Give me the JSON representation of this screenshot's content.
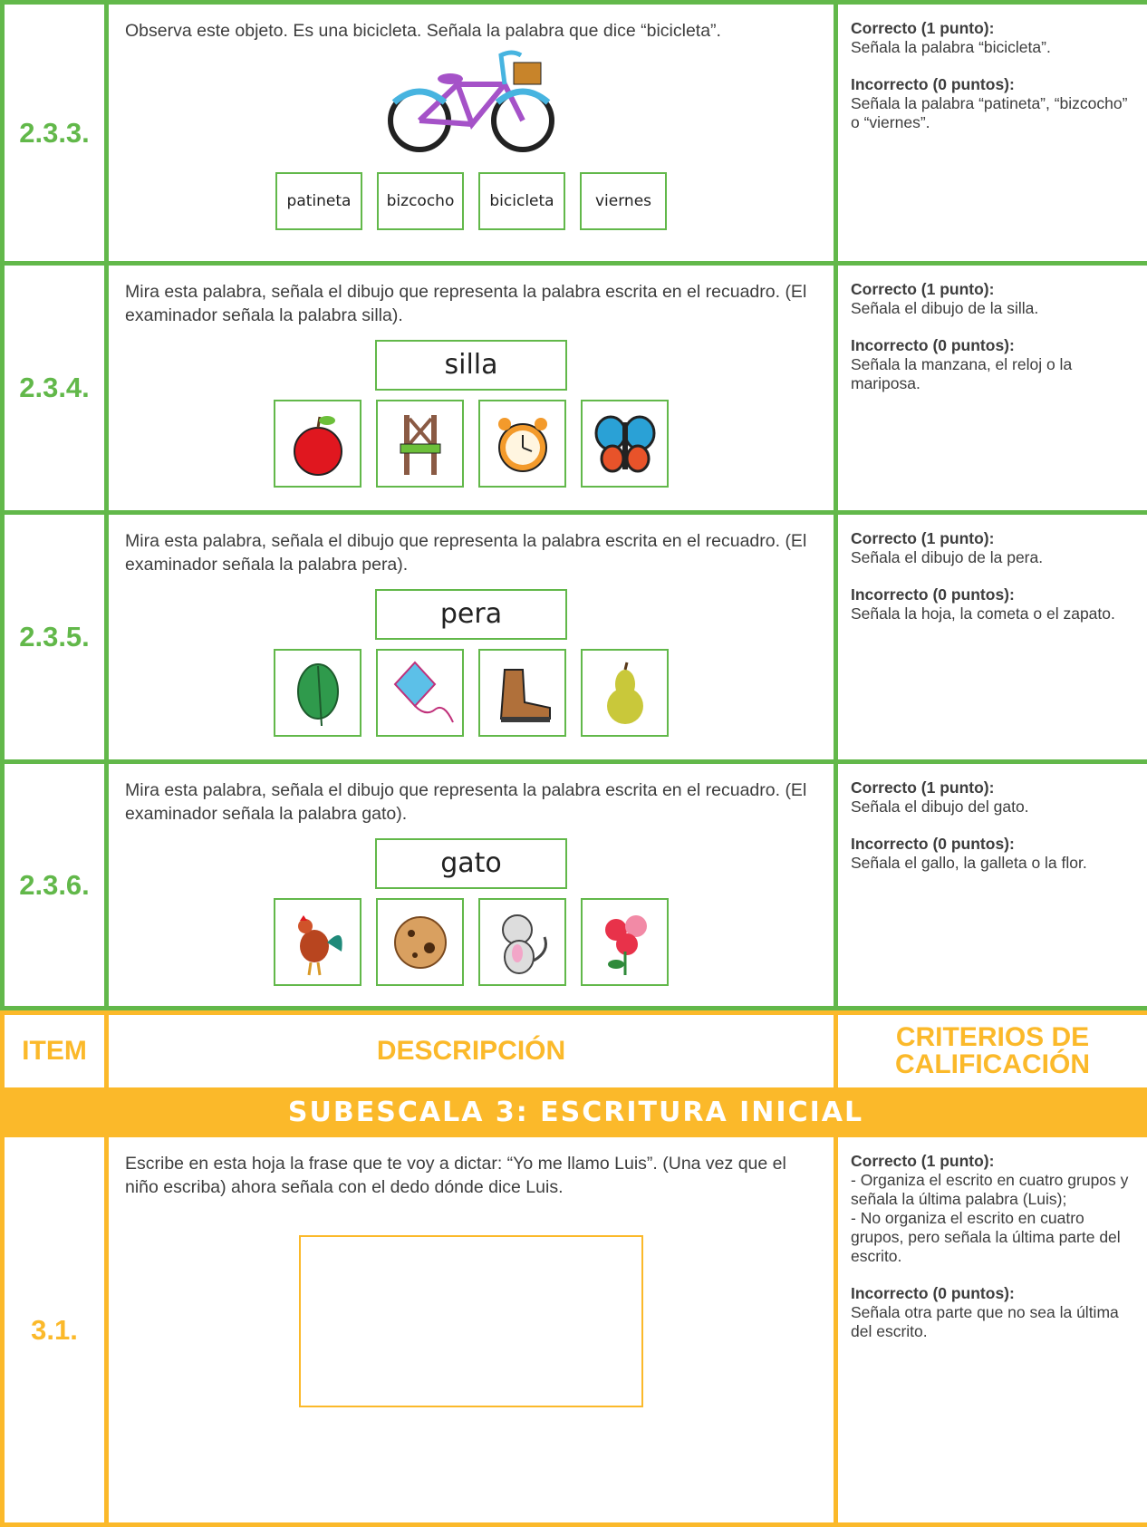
{
  "rows": [
    {
      "item": "2.3.3.",
      "instruction": "Observa este objeto. Es una bicicleta. Señala la palabra que dice “bicicleta”.",
      "options": [
        "patineta",
        "bizcocho",
        "bicicleta",
        "viernes"
      ],
      "criteria": {
        "correct_label": "Correcto (1 punto):",
        "correct": "Señala la palabra “bicicleta”.",
        "incorrect_label": "Incorrecto (0 puntos):",
        "incorrect": "Señala la palabra “patineta”, “bizcocho” o “viernes”."
      }
    },
    {
      "item": "2.3.4.",
      "instruction": "Mira esta palabra, señala el dibujo que representa la palabra escrita en el recuadro. (El examinador señala la palabra silla).",
      "word": "silla",
      "criteria": {
        "correct_label": "Correcto (1 punto):",
        "correct": "Señala el dibujo de la silla.",
        "incorrect_label": "Incorrecto (0 puntos):",
        "incorrect": "Señala la manzana, el reloj o la mariposa."
      }
    },
    {
      "item": "2.3.5.",
      "instruction": "Mira esta palabra, señala el dibujo que representa la palabra escrita en el recuadro. (El examinador señala la palabra pera).",
      "word": "pera",
      "criteria": {
        "correct_label": "Correcto (1 punto):",
        "correct": "Señala el dibujo de la pera.",
        "incorrect_label": "Incorrecto (0 puntos):",
        "incorrect": "Señala la hoja, la cometa o el zapato."
      }
    },
    {
      "item": "2.3.6.",
      "instruction": "Mira esta palabra, señala el dibujo que representa la palabra escrita en el recuadro. (El examinador señala la palabra gato).",
      "word": "gato",
      "criteria": {
        "correct_label": "Correcto (1 punto):",
        "correct": "Señala el dibujo del gato.",
        "incorrect_label": "Incorrecto (0 puntos):",
        "incorrect": "Señala el gallo, la galleta o la flor."
      }
    }
  ],
  "header": {
    "item": "ITEM",
    "description": "DESCRIPCIÓN",
    "criteria": "CRITERIOS DE CALIFICACIÓN"
  },
  "subscale": "SUBESCALA 3: ESCRITURA INICIAL",
  "final_row": {
    "item": "3.1.",
    "instruction": "Escribe en esta hoja la frase que te voy a dictar: “Yo me llamo Luis”. (Una vez que el niño escriba) ahora señala con el dedo dónde dice Luis.",
    "criteria": {
      "correct_label": "Correcto (1 punto):",
      "correct": [
        "- Organiza el escrito en cuatro grupos y señala la última palabra (Luis);",
        "- No organiza el escrito en cuatro grupos, pero señala la última parte del escrito."
      ],
      "incorrect_label": "Incorrecto (0 puntos):",
      "incorrect": "Señala otra parte que no sea la última del escrito."
    }
  }
}
